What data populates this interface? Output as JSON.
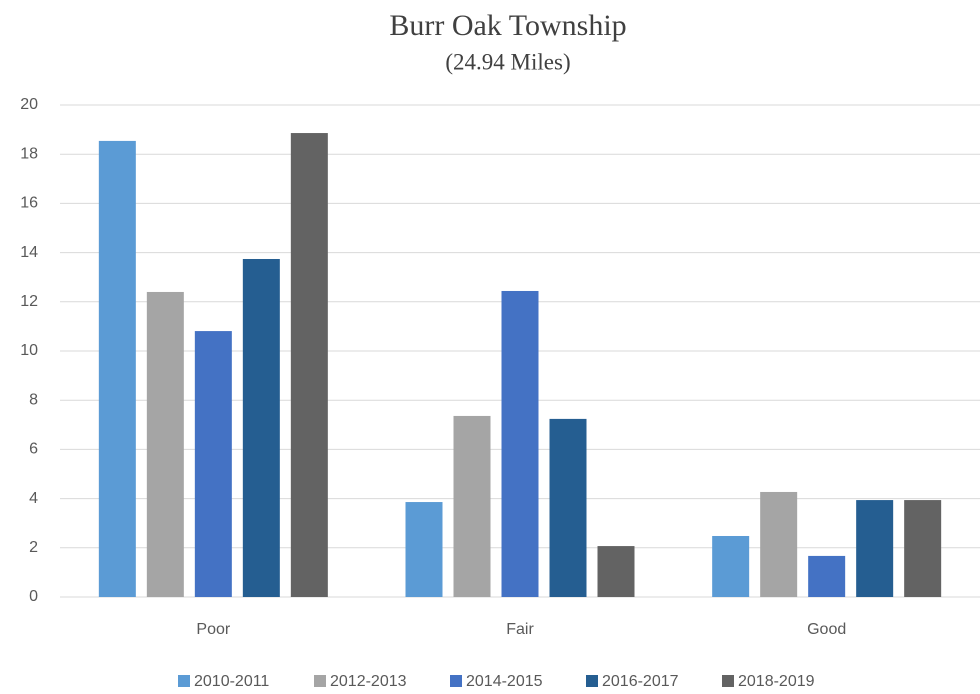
{
  "chart_data": {
    "type": "bar",
    "title": "Burr Oak Township",
    "subtitle": "(24.94 Miles)",
    "categories": [
      "Poor",
      "Fair",
      "Good"
    ],
    "series": [
      {
        "name": "2010-2011",
        "color": "#5b9bd5",
        "values": [
          18.54,
          3.86,
          2.48
        ]
      },
      {
        "name": "2012-2013",
        "color": "#a5a5a5",
        "values": [
          12.4,
          7.36,
          4.27
        ]
      },
      {
        "name": "2014-2015",
        "color": "#4472c4",
        "values": [
          10.81,
          12.44,
          1.67
        ]
      },
      {
        "name": "2016-2017",
        "color": "#255e91",
        "values": [
          13.74,
          7.24,
          3.94
        ]
      },
      {
        "name": "2018-2019",
        "color": "#636363",
        "values": [
          18.86,
          2.07,
          3.94
        ]
      }
    ],
    "ylim": [
      0,
      20
    ],
    "yticks": [
      0,
      2,
      4,
      6,
      8,
      10,
      12,
      14,
      16,
      18,
      20
    ],
    "grid": true,
    "legend": "bottom"
  }
}
